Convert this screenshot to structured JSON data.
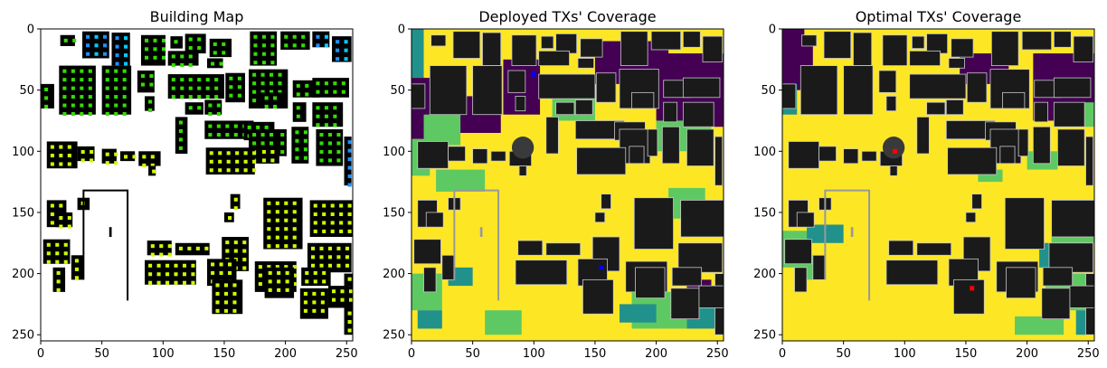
{
  "chart_data": [
    {
      "type": "heatmap",
      "title": "Building Map",
      "xlim": [
        0,
        255
      ],
      "ylim": [
        255,
        0
      ],
      "xticks": [
        0,
        50,
        100,
        150,
        200,
        250
      ],
      "yticks": [
        0,
        50,
        100,
        150,
        200,
        250
      ],
      "colors": {
        "background": "#ffffff",
        "building": "#000000",
        "sensor_green": "#33dd00",
        "sensor_yellow": "#ccff00",
        "sensor_blue": "#1e90ff",
        "sensor_cyan": "#00ccff"
      }
    },
    {
      "type": "heatmap",
      "title": "Deployed TXs' Coverage",
      "xlim": [
        0,
        255
      ],
      "ylim": [
        255,
        0
      ],
      "xticks": [
        0,
        50,
        100,
        150,
        200,
        250
      ],
      "yticks": [
        0,
        50,
        100,
        150,
        200,
        250
      ],
      "transmitters": [
        {
          "x": 100,
          "y": 37
        },
        {
          "x": 155,
          "y": 195
        }
      ],
      "tx_color": "#0000ff",
      "colors": {
        "high": "#fde725",
        "mid": "#5ec962",
        "low": "#21918c",
        "none": "#440154",
        "building": "#1a1a1a",
        "outline": "#c8c8c8"
      }
    },
    {
      "type": "heatmap",
      "title": "Optimal TXs' Coverage",
      "xlim": [
        0,
        255
      ],
      "ylim": [
        255,
        0
      ],
      "xticks": [
        0,
        50,
        100,
        150,
        200,
        250
      ],
      "yticks": [
        0,
        50,
        100,
        150,
        200,
        250
      ],
      "transmitters": [
        {
          "x": 92,
          "y": 100
        },
        {
          "x": 155,
          "y": 212
        }
      ],
      "tx_color": "#ff0000",
      "colors": {
        "high": "#fde725",
        "mid": "#5ec962",
        "low": "#21918c",
        "none": "#440154",
        "building": "#1a1a1a",
        "outline": "#c8c8c8"
      }
    }
  ]
}
